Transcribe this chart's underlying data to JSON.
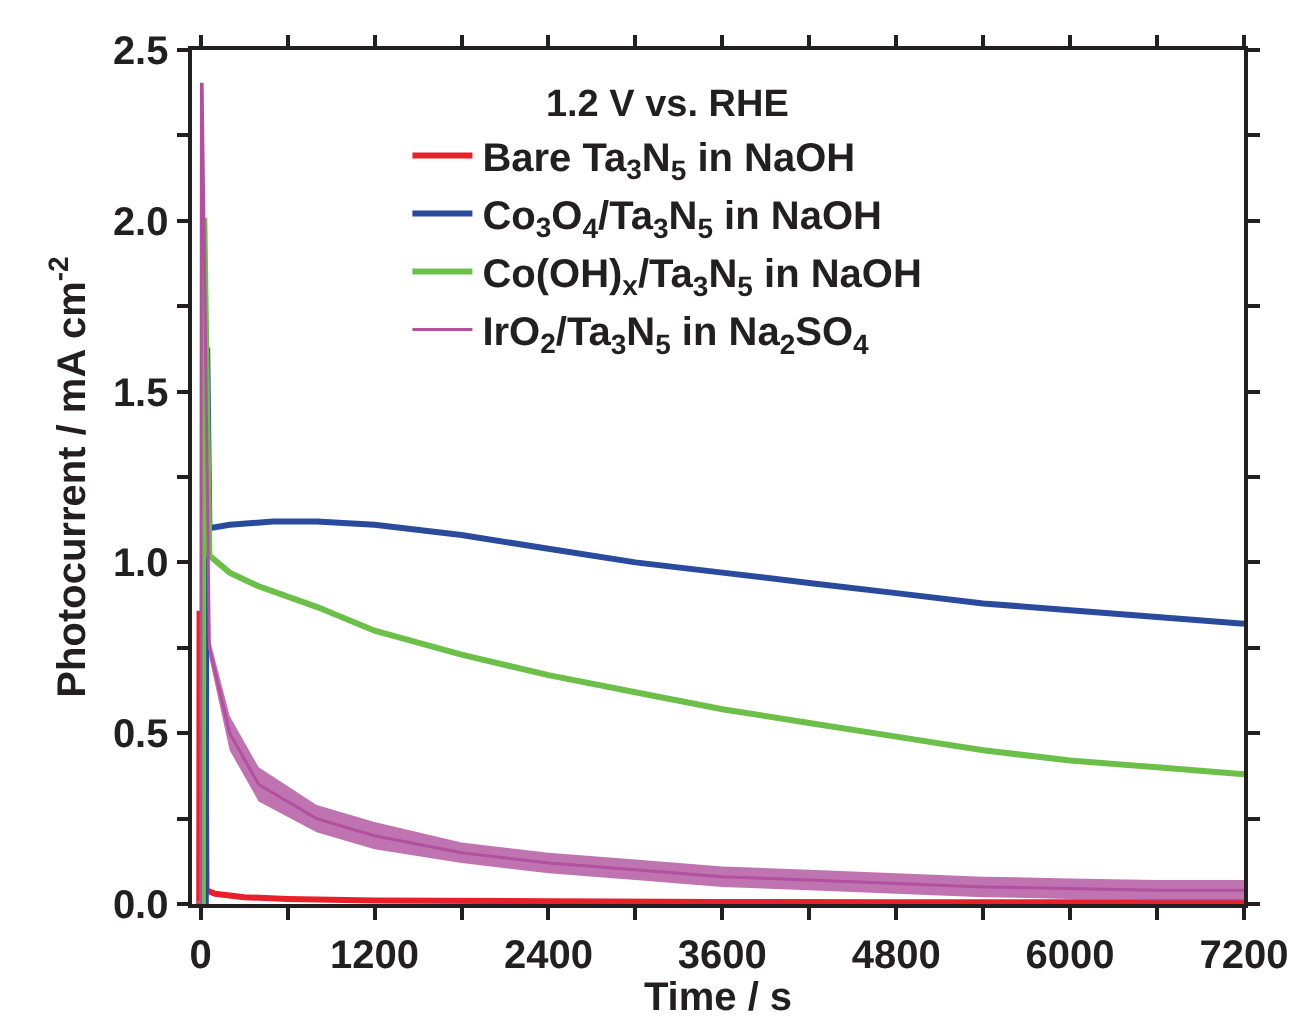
{
  "chart_data": {
    "type": "line",
    "xlabel": "Time / s",
    "ylabel": "Photocurrent / mA cm$^{-2}$",
    "legend_title": "1.2 V vs. RHE",
    "xlim": [
      -60,
      7200
    ],
    "ylim": [
      0,
      2.5
    ],
    "xticks": [
      0,
      {
        "value": 600,
        "label": null
      },
      1200,
      {
        "value": 1800,
        "label": null
      },
      2400,
      {
        "value": 3000,
        "label": null
      },
      3600,
      {
        "value": 4200,
        "label": null
      },
      4800,
      {
        "value": 5400,
        "label": null
      },
      6000,
      {
        "value": 6600,
        "label": null
      },
      7200
    ],
    "yticks": [
      {
        "value": 0,
        "label": "0.0"
      },
      {
        "value": 0.25,
        "label": null
      },
      0.5,
      {
        "value": 0.75,
        "label": null
      },
      {
        "value": 1,
        "label": "1.0"
      },
      {
        "value": 1.25,
        "label": null
      },
      1.5,
      {
        "value": 1.75,
        "label": null
      },
      {
        "value": 2,
        "label": "2.0"
      },
      {
        "value": 2.25,
        "label": null
      },
      2.5
    ],
    "grid": false,
    "legend": "top right",
    "marker": "none",
    "line_style": "solid",
    "series": [
      {
        "name": "Bare Ta$_{3}$N$_{5}$ in NaOH",
        "color": "#e8202a",
        "x": [
          -20,
          -10,
          -8,
          30,
          40,
          100,
          300,
          600,
          1200,
          2400,
          3600,
          4800,
          6000,
          7200
        ],
        "values": [
          0,
          0,
          0.85,
          0.85,
          0.04,
          0.03,
          0.02,
          0.015,
          0.01,
          0.008,
          0.006,
          0.005,
          0.005,
          0.005
        ]
      },
      {
        "name": "Co$_{3}$O$_{4}$/Ta$_{3}$N$_{5}$ in NaOH",
        "color": "#2a4a9e",
        "x": [
          -20,
          35,
          40,
          45,
          60,
          200,
          500,
          800,
          1200,
          1800,
          2400,
          3000,
          3600,
          4200,
          4800,
          5400,
          6000,
          6600,
          7200
        ],
        "values": [
          0,
          0,
          1.62,
          1.62,
          1.1,
          1.11,
          1.12,
          1.12,
          1.11,
          1.08,
          1.04,
          1.0,
          0.97,
          0.94,
          0.91,
          0.88,
          0.86,
          0.84,
          0.82
        ]
      },
      {
        "name": "Co(OH)$_{x}$/Ta$_{3}$N$_{5}$ in NaOH",
        "color": "#6cc04a",
        "x": [
          -20,
          15,
          20,
          25,
          60,
          200,
          400,
          800,
          1200,
          1800,
          2400,
          3000,
          3600,
          4200,
          4800,
          5400,
          6000,
          6600,
          7200
        ],
        "values": [
          0,
          0,
          2.0,
          2.0,
          1.02,
          0.97,
          0.93,
          0.87,
          0.8,
          0.73,
          0.67,
          0.62,
          0.57,
          0.53,
          0.49,
          0.45,
          0.42,
          0.4,
          0.38
        ]
      },
      {
        "name": "IrO$_{2}$/Ta$_{3}$N$_{5}$ in Na$_{2}$SO$_{4}$",
        "color": "#b0509e",
        "x": [
          -20,
          0,
          5,
          10,
          60,
          200,
          400,
          800,
          1200,
          1800,
          2400,
          3000,
          3600,
          4200,
          4800,
          5400,
          6000,
          6600,
          7200
        ],
        "values": [
          0,
          0,
          2.4,
          2.4,
          0.75,
          0.5,
          0.35,
          0.25,
          0.2,
          0.15,
          0.12,
          0.1,
          0.08,
          0.07,
          0.06,
          0.05,
          0.045,
          0.04,
          0.04
        ],
        "lower": [
          0,
          0,
          2.4,
          2.4,
          0.72,
          0.45,
          0.3,
          0.21,
          0.16,
          0.12,
          0.09,
          0.07,
          0.05,
          0.04,
          0.03,
          0.02,
          0.015,
          0.01,
          0.01
        ],
        "upper": [
          0,
          0,
          2.4,
          2.4,
          0.78,
          0.55,
          0.4,
          0.29,
          0.24,
          0.18,
          0.15,
          0.13,
          0.11,
          0.1,
          0.09,
          0.08,
          0.075,
          0.07,
          0.07
        ]
      }
    ]
  }
}
